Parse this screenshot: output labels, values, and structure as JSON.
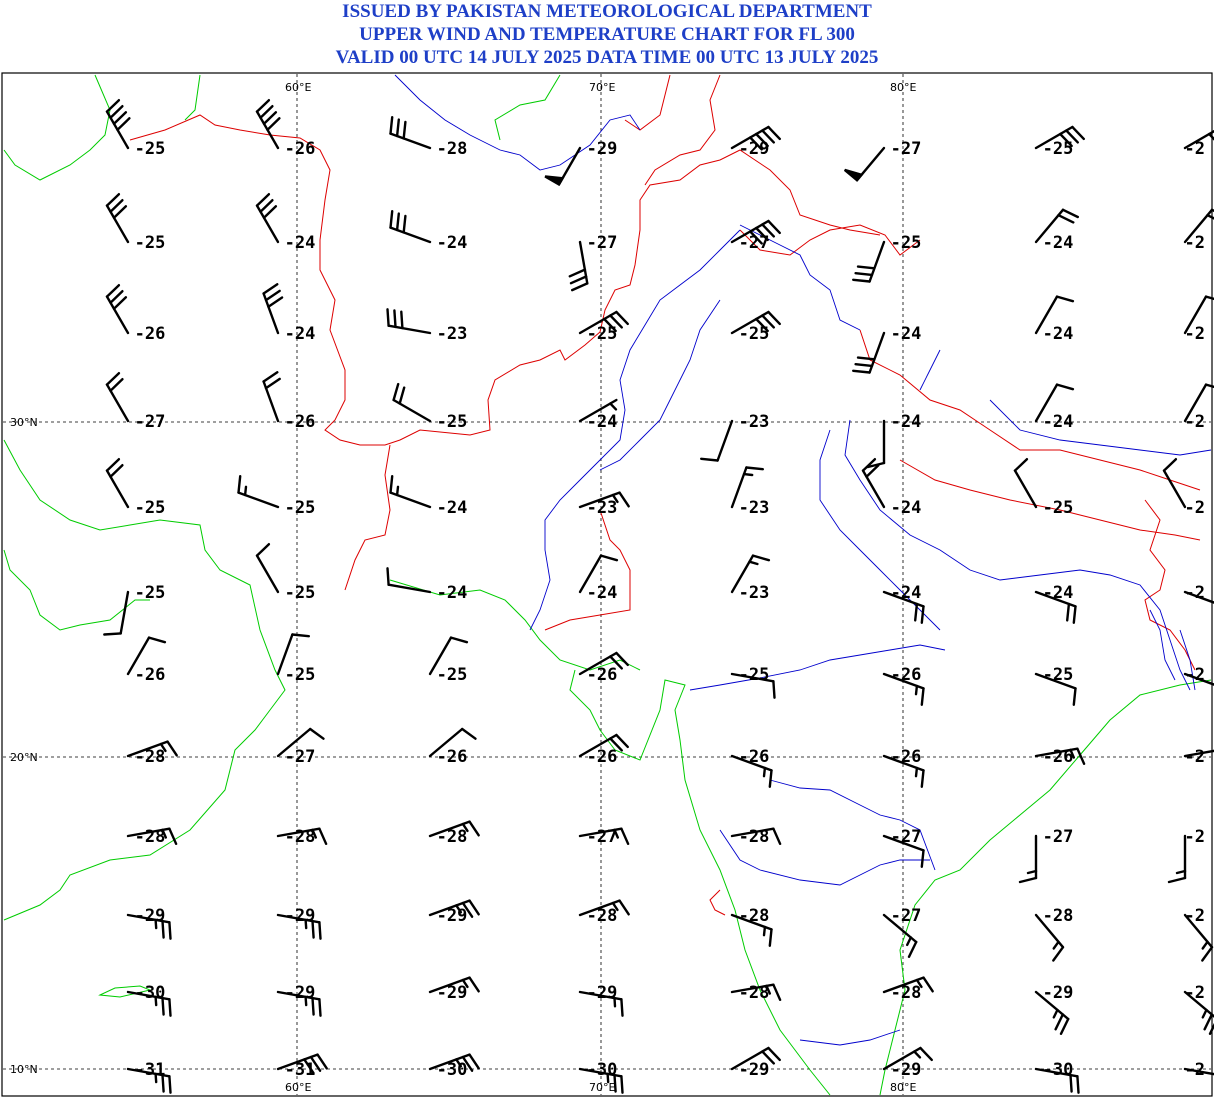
{
  "title": {
    "line1": "ISSUED BY PAKISTAN METEOROLOGICAL DEPARTMENT",
    "line2": "UPPER WIND AND TEMPERATURE CHART FOR FL 300",
    "line3": "VALID 00 UTC 14 JULY 2025 DATA TIME 00 UTC 13 JULY 2025"
  },
  "colors": {
    "title": "#1e3fc7",
    "border_country": "#dd0000",
    "coastline": "#00cc00",
    "river": "#0000cc",
    "grid": "#000000"
  },
  "longitude_labels": [
    "60°E",
    "70°E",
    "80°E"
  ],
  "latitude_labels": [
    "30°N",
    "20°N",
    "10°N"
  ],
  "grid_values": {
    "longitudes": [
      55,
      60,
      65,
      70,
      75,
      80,
      85,
      90
    ],
    "latitudes": [
      36,
      34,
      32,
      30,
      28,
      26,
      24,
      22,
      20,
      18,
      16,
      14,
      12,
      10
    ]
  },
  "temperatures": [
    [
      "-25",
      "-26",
      "-28",
      "-29",
      "-29",
      "-27",
      "-25",
      "-2"
    ],
    [
      "-25",
      "-24",
      "-24",
      "-27",
      "-27",
      "-25",
      "-24",
      "-2"
    ],
    [
      "-26",
      "-24",
      "-23",
      "-25",
      "-25",
      "-24",
      "-24",
      "-2"
    ],
    [
      "-27",
      "-26",
      "-25",
      "-24",
      "-23",
      "-24",
      "-24",
      "-2"
    ],
    [
      "-25",
      "-25",
      "-24",
      "-23",
      "-23",
      "-24",
      "-25",
      "-2"
    ],
    [
      "-25",
      "-25",
      "-24",
      "-24",
      "-23",
      "-24",
      "-24",
      "-2"
    ],
    [
      "-26",
      "-25",
      "-25",
      "-26",
      "-25",
      "-26",
      "-25",
      "-2"
    ],
    [
      "-28",
      "-27",
      "-26",
      "-26",
      "-26",
      "-26",
      "-26",
      "-2"
    ],
    [
      "-28",
      "-28",
      "-28",
      "-27",
      "-28",
      "-27",
      "-27",
      "-2"
    ],
    [
      "-29",
      "-29",
      "-29",
      "-28",
      "-28",
      "-27",
      "-28",
      "-2"
    ],
    [
      "-30",
      "-29",
      "-29",
      "-29",
      "-28",
      "-28",
      "-29",
      "-2"
    ],
    [
      "-31",
      "-31",
      "-30",
      "-30",
      "-29",
      "-29",
      "-30",
      "-2"
    ]
  ],
  "wind_barbs": [
    [
      {
        "dir": 330,
        "kt": 40
      },
      {
        "dir": 330,
        "kt": 40
      },
      {
        "dir": 290,
        "kt": 30
      },
      {
        "dir": 210,
        "kt": 50
      },
      {
        "dir": 60,
        "kt": 40
      },
      {
        "dir": 220,
        "kt": 50
      },
      {
        "dir": 60,
        "kt": 30
      },
      {
        "dir": 60,
        "kt": 30
      }
    ],
    [
      {
        "dir": 330,
        "kt": 30
      },
      {
        "dir": 330,
        "kt": 30
      },
      {
        "dir": 290,
        "kt": 30
      },
      {
        "dir": 170,
        "kt": 30
      },
      {
        "dir": 60,
        "kt": 40
      },
      {
        "dir": 200,
        "kt": 30
      },
      {
        "dir": 40,
        "kt": 20
      },
      {
        "dir": 40,
        "kt": 20
      }
    ],
    [
      {
        "dir": 330,
        "kt": 30
      },
      {
        "dir": 340,
        "kt": 30
      },
      {
        "dir": 280,
        "kt": 30
      },
      {
        "dir": 60,
        "kt": 30
      },
      {
        "dir": 60,
        "kt": 30
      },
      {
        "dir": 200,
        "kt": 30
      },
      {
        "dir": 30,
        "kt": 10
      },
      {
        "dir": 30,
        "kt": 10
      }
    ],
    [
      {
        "dir": 330,
        "kt": 20
      },
      {
        "dir": 340,
        "kt": 20
      },
      {
        "dir": 300,
        "kt": 20
      },
      {
        "dir": 60,
        "kt": 5
      },
      {
        "dir": 200,
        "kt": 10
      },
      {
        "dir": 180,
        "kt": 10
      },
      {
        "dir": 30,
        "kt": 10
      },
      {
        "dir": 30,
        "kt": 10
      }
    ],
    [
      {
        "dir": 330,
        "kt": 20
      },
      {
        "dir": 290,
        "kt": 15
      },
      {
        "dir": 290,
        "kt": 15
      },
      {
        "dir": 70,
        "kt": 15
      },
      {
        "dir": 20,
        "kt": 15
      },
      {
        "dir": 330,
        "kt": 20
      },
      {
        "dir": 330,
        "kt": 10
      },
      {
        "dir": 330,
        "kt": 10
      }
    ],
    [
      {
        "dir": 190,
        "kt": 10
      },
      {
        "dir": 330,
        "kt": 10
      },
      {
        "dir": 280,
        "kt": 10
      },
      {
        "dir": 30,
        "kt": 10
      },
      {
        "dir": 30,
        "kt": 15
      },
      {
        "dir": 110,
        "kt": 20
      },
      {
        "dir": 110,
        "kt": 20
      },
      {
        "dir": 110,
        "kt": 20
      }
    ],
    [
      {
        "dir": 30,
        "kt": 10
      },
      {
        "dir": 20,
        "kt": 10
      },
      {
        "dir": 30,
        "kt": 10
      },
      {
        "dir": 60,
        "kt": 20
      },
      {
        "dir": 100,
        "kt": 10
      },
      {
        "dir": 110,
        "kt": 15
      },
      {
        "dir": 110,
        "kt": 10
      },
      {
        "dir": 110,
        "kt": 10
      }
    ],
    [
      {
        "dir": 70,
        "kt": 15
      },
      {
        "dir": 50,
        "kt": 10
      },
      {
        "dir": 50,
        "kt": 10
      },
      {
        "dir": 60,
        "kt": 20
      },
      {
        "dir": 110,
        "kt": 15
      },
      {
        "dir": 110,
        "kt": 15
      },
      {
        "dir": 80,
        "kt": 15
      },
      {
        "dir": 80,
        "kt": 15
      }
    ],
    [
      {
        "dir": 80,
        "kt": 15
      },
      {
        "dir": 80,
        "kt": 15
      },
      {
        "dir": 70,
        "kt": 15
      },
      {
        "dir": 80,
        "kt": 15
      },
      {
        "dir": 80,
        "kt": 10
      },
      {
        "dir": 110,
        "kt": 10
      },
      {
        "dir": 180,
        "kt": 15
      },
      {
        "dir": 180,
        "kt": 15
      }
    ],
    [
      {
        "dir": 100,
        "kt": 25
      },
      {
        "dir": 100,
        "kt": 25
      },
      {
        "dir": 70,
        "kt": 25
      },
      {
        "dir": 70,
        "kt": 15
      },
      {
        "dir": 110,
        "kt": 15
      },
      {
        "dir": 130,
        "kt": 15
      },
      {
        "dir": 140,
        "kt": 15
      },
      {
        "dir": 140,
        "kt": 15
      }
    ],
    [
      {
        "dir": 100,
        "kt": 25
      },
      {
        "dir": 100,
        "kt": 25
      },
      {
        "dir": 70,
        "kt": 15
      },
      {
        "dir": 100,
        "kt": 15
      },
      {
        "dir": 80,
        "kt": 15
      },
      {
        "dir": 70,
        "kt": 15
      },
      {
        "dir": 130,
        "kt": 25
      },
      {
        "dir": 130,
        "kt": 25
      }
    ],
    [
      {
        "dir": 100,
        "kt": 25
      },
      {
        "dir": 70,
        "kt": 30
      },
      {
        "dir": 70,
        "kt": 25
      },
      {
        "dir": 100,
        "kt": 25
      },
      {
        "dir": 60,
        "kt": 20
      },
      {
        "dir": 60,
        "kt": 15
      },
      {
        "dir": 100,
        "kt": 20
      },
      {
        "dir": 100,
        "kt": 20
      }
    ]
  ]
}
